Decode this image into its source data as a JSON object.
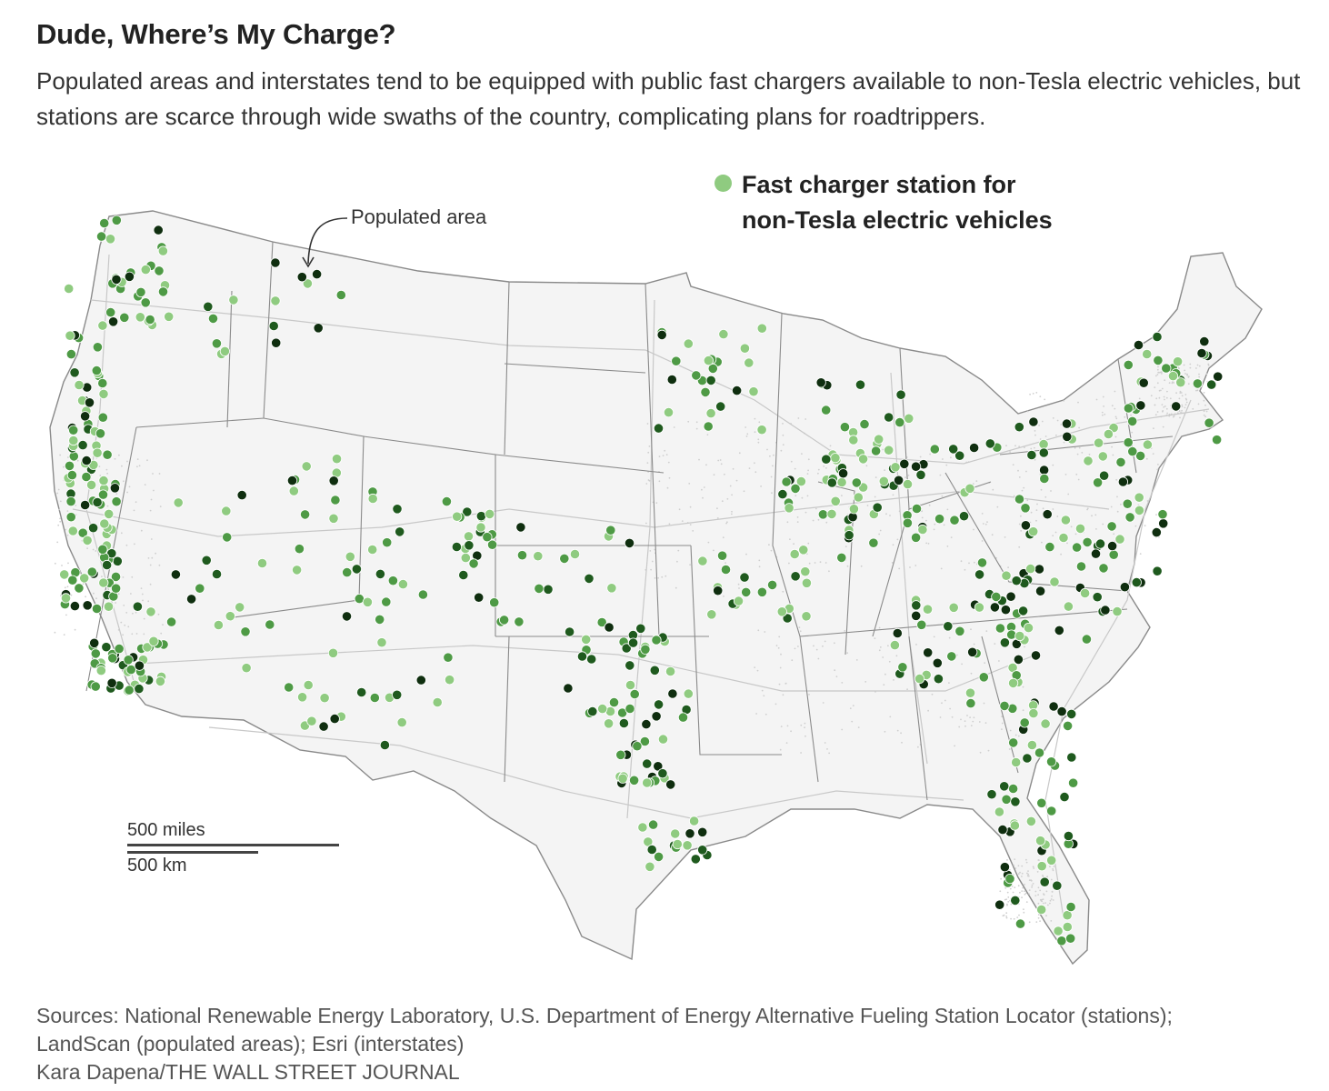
{
  "header": {
    "title": "Dude, Where’s My Charge?",
    "subtitle": "Populated areas and interstates tend to be equipped with public fast chargers available to non-Tesla electric vehicles, but stations are scarce through wide swaths of the country, complicating plans for roadtrippers."
  },
  "legend": {
    "label": "Fast charger station for non-Tesla electric vehicles",
    "color": "#8fcb80"
  },
  "annotation": {
    "label": "Populated area"
  },
  "scale": {
    "miles_label": "500 miles",
    "km_label": "500 km"
  },
  "footer": {
    "sources_line1": "Sources: National Renewable Energy Laboratory, U.S. Department of Energy Alternative Fueling Station Locator (stations);",
    "sources_line2": "LandScan  (populated areas); Esri (interstates)",
    "credit": "Kara Dapena/THE WALL STREET JOURNAL"
  },
  "colors": {
    "station_light": "#8fcb80",
    "station_mid": "#4e9a45",
    "station_dark": "#1f5a1e",
    "station_darkest": "#0f2e0f",
    "land": "#f4f4f4",
    "border": "#8a8a8a"
  }
}
